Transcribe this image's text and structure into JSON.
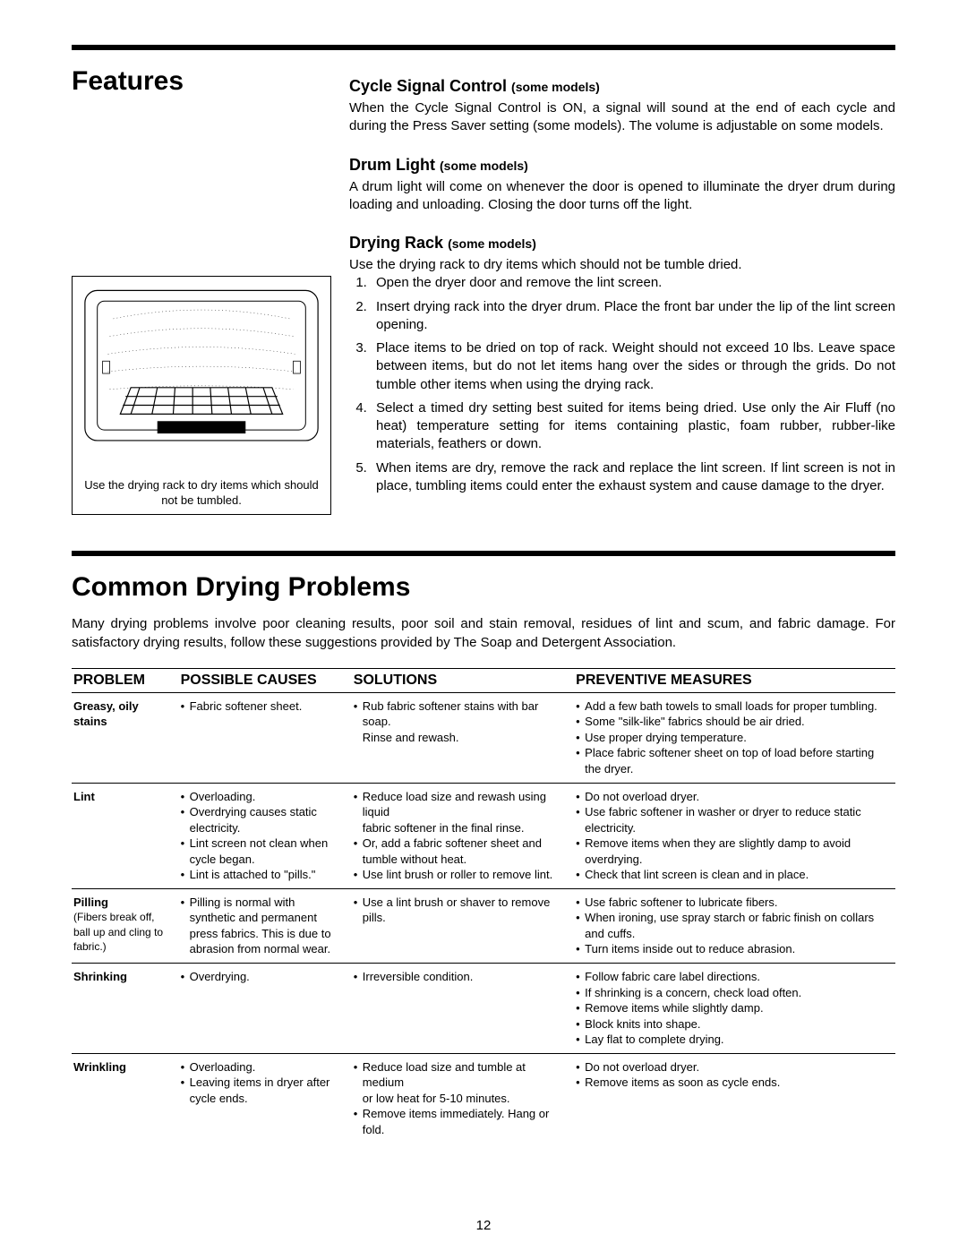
{
  "page_number": "12",
  "features": {
    "title": "Features",
    "cycle": {
      "heading": "Cycle Signal Control",
      "sub": "(some models)",
      "body": "When the Cycle Signal Control is ON, a signal will sound at the end of each cycle and during the Press Saver setting (some models). The volume is adjustable on some models."
    },
    "drum": {
      "heading": "Drum Light",
      "sub": "(some models)",
      "body": "A drum light will come on whenever the door is opened to illuminate the dryer drum during loading and unloading. Closing the door turns off the light."
    },
    "rack": {
      "heading": "Drying Rack",
      "sub": "(some models)",
      "intro": "Use the drying rack to dry items which should not be tumble dried.",
      "steps": [
        "Open the dryer door and remove the lint screen.",
        "Insert drying rack into the dryer drum. Place the front bar under the lip of the lint screen opening.",
        "Place items to be dried on top of rack. Weight should not exceed 10 lbs. Leave space between items, but do not let items hang over the sides or through the grids. Do not tumble other items when using the drying rack.",
        "Select a timed dry setting best suited for items being dried. Use only the Air Fluff (no heat) temperature setting for items containing plastic, foam rubber, rubber-like materials, feathers or down.",
        "When items are dry, remove the rack and replace the lint screen. If lint screen is not in place, tumbling items could enter the exhaust system and cause damage to the dryer."
      ]
    },
    "figure_caption": "Use the drying rack to dry items which should not be tumbled."
  },
  "problems": {
    "title": "Common Drying Problems",
    "intro": "Many drying problems involve poor cleaning results, poor soil and stain removal, residues of lint and scum, and fabric damage. For satisfactory drying results, follow these suggestions provided by The Soap and Detergent Association.",
    "headers": {
      "problem": "PROBLEM",
      "causes": "POSSIBLE CAUSES",
      "solutions": "SOLUTIONS",
      "prevent": "PREVENTIVE MEASURES"
    },
    "col_widths": {
      "problem": "13%",
      "causes": "21%",
      "solutions": "27%",
      "prevent": "39%"
    },
    "rows": [
      {
        "name": "Greasy, oily stains",
        "sub": "",
        "causes": [
          "Fabric softener sheet."
        ],
        "solutions": [
          "Rub fabric softener stains with bar soap.\nRinse and rewash."
        ],
        "prevent": [
          "Add a few bath towels to small loads for proper tumbling.",
          "Some \"silk-like\" fabrics should be air dried.",
          "Use proper drying temperature.",
          "Place fabric softener sheet on top of load before starting the dryer."
        ]
      },
      {
        "name": "Lint",
        "sub": "",
        "causes": [
          "Overloading.",
          "Overdrying causes static electricity.",
          "Lint screen not clean when cycle began.",
          "Lint is attached to \"pills.\""
        ],
        "solutions": [
          "Reduce load size and rewash using liquid\nfabric softener in the final rinse.",
          "Or, add a fabric softener sheet and tumble without heat.",
          "Use lint brush or roller to remove lint."
        ],
        "prevent": [
          "Do not overload dryer.",
          "Use fabric softener in washer or dryer to reduce static electricity.",
          "Remove items when they are slightly damp to avoid overdrying.",
          "Check that lint screen is clean and in place."
        ]
      },
      {
        "name": "Pilling",
        "sub": "(Fibers break off, ball up and cling to fabric.)",
        "causes": [
          "Pilling is normal with synthetic and permanent press fabrics. This is due to abrasion from normal wear."
        ],
        "solutions": [
          "Use a lint brush or shaver to remove pills."
        ],
        "prevent": [
          "Use fabric softener to lubricate fibers.",
          "When ironing, use spray starch or fabric finish on collars and cuffs.",
          "Turn items inside out to reduce abrasion."
        ]
      },
      {
        "name": "Shrinking",
        "sub": "",
        "causes": [
          "Overdrying."
        ],
        "solutions": [
          "Irreversible condition."
        ],
        "prevent": [
          "Follow fabric care label directions.",
          "If shrinking is a concern, check load often.",
          "Remove items while slightly damp.",
          "Block knits into shape.",
          "Lay flat to complete drying."
        ]
      },
      {
        "name": "Wrinkling",
        "sub": "",
        "causes": [
          "Overloading.",
          "Leaving items in dryer after cycle ends."
        ],
        "solutions": [
          "Reduce load size and tumble at medium\nor low heat for 5-10 minutes.",
          "Remove items immediately. Hang or fold."
        ],
        "prevent": [
          "Do not overload dryer.",
          "Remove items as soon as cycle ends."
        ]
      }
    ]
  }
}
